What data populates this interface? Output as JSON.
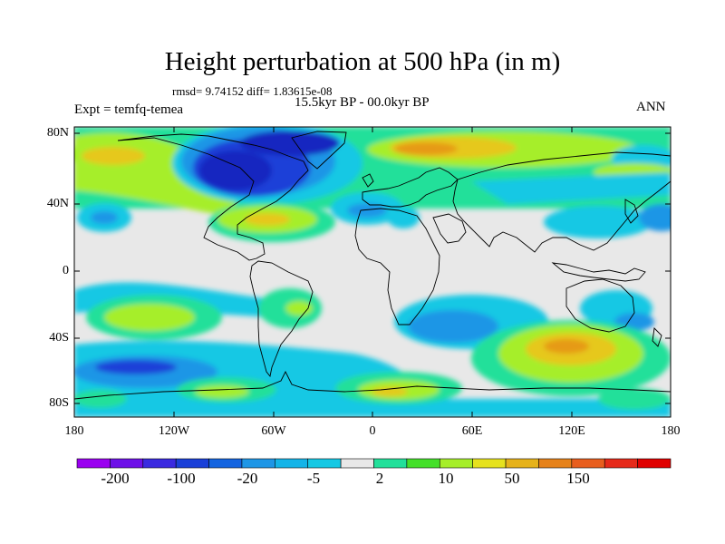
{
  "title": "Height perturbation at 500 hPa (in m)",
  "stats": "rmsd= 9.74152 diff= 1.83615e-08",
  "experiment": "Expt = temfq-temea",
  "period": "15.5kyr BP - 00.0kyr BP",
  "season": "ANN",
  "lat_ticks": [
    "80N",
    "40N",
    "0",
    "40S",
    "80S"
  ],
  "lon_ticks": [
    "180",
    "120W",
    "60W",
    "0",
    "60E",
    "120E",
    "180"
  ],
  "colorbar_labels": [
    "-200",
    "-100",
    "-20",
    "-5",
    "2",
    "10",
    "50",
    "150"
  ],
  "colorbar_colors": [
    "#9a00f0",
    "#6e10e8",
    "#3a2ae0",
    "#1a40d8",
    "#1464e0",
    "#1e96e6",
    "#14b4e8",
    "#15c8e4",
    "#e8e8e8",
    "#22e09a",
    "#44e02a",
    "#a6ee2a",
    "#e6e21e",
    "#e6b21a",
    "#e6821a",
    "#e85e1e",
    "#e62a1a",
    "#e00000"
  ],
  "colors": {
    "background_land": "#e8e8e8",
    "neg_light": "#15c8e4",
    "neg_mid": "#1e96e6",
    "neg_strong": "#1a40d8",
    "neg_deep": "#1628c0",
    "pos_light": "#22e09a",
    "pos_mid": "#a6ee2a",
    "pos_strong": "#e6c81e",
    "pos_deep": "#e69a18"
  }
}
